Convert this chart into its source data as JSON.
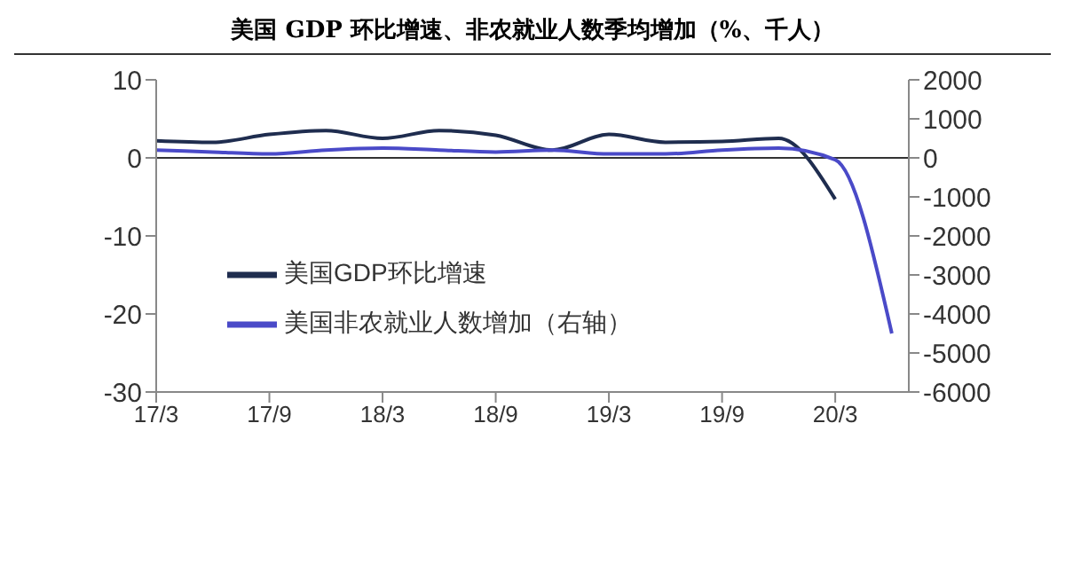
{
  "chart_data": {
    "type": "line",
    "title": "美国 GDP 环比增速、非农就业人数季均增加（%、千人）",
    "categories": [
      "17/3",
      null,
      "17/9",
      null,
      "18/3",
      null,
      "18/9",
      null,
      "19/3",
      null,
      "19/9",
      null,
      "20/3",
      null
    ],
    "series": [
      {
        "name": "美国GDP环比增速",
        "color": "#1f2d4f",
        "values": [
          2.2,
          2.0,
          3.0,
          3.5,
          2.5,
          3.5,
          2.9,
          1.0,
          3.0,
          2.0,
          2.1,
          2.5,
          -5.3,
          null
        ]
      },
      {
        "name": "美国非农就业人数增加（右轴）",
        "color": "#4a4ac8",
        "axis": "y2",
        "values": [
          200,
          150,
          100,
          200,
          250,
          200,
          150,
          200,
          100,
          100,
          200,
          250,
          -50,
          -4500
        ]
      }
    ],
    "ylim": [
      -30,
      10
    ],
    "yticks": [
      -30,
      -20,
      -10,
      0,
      10
    ],
    "y2lim": [
      -6000,
      2000
    ],
    "y2ticks": [
      -6000,
      -5000,
      -4000,
      -3000,
      -2000,
      -1000,
      0,
      1000,
      2000
    ],
    "ref_lines": [
      {
        "axis": "y",
        "value": 0
      }
    ],
    "legend": "left",
    "grid": false
  }
}
